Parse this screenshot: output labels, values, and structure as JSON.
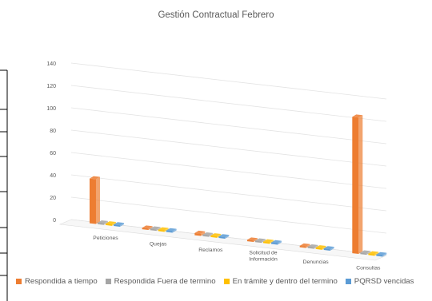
{
  "chart_data": {
    "type": "bar",
    "title": "Gestión Contractual Febrero",
    "categories": [
      "Peticiones",
      "Quejas",
      "Reclamos",
      "Solicitud de Información",
      "Denuncias",
      "Consultas"
    ],
    "category_lines": [
      [
        "Peticiones"
      ],
      [
        "Quejas"
      ],
      [
        "Reclamos"
      ],
      [
        "Solicitud de",
        "Información"
      ],
      [
        "Denuncias"
      ],
      [
        "Consultas"
      ]
    ],
    "series": [
      {
        "name": "Respondida a tiempo",
        "color": "#ED7D31",
        "values": [
          40,
          0,
          2,
          0,
          0,
          122
        ]
      },
      {
        "name": "Respondida Fuera de termino",
        "color": "#A5A5A5",
        "values": [
          0,
          0,
          0,
          0,
          0,
          0
        ]
      },
      {
        "name": "En trámite y dentro del termino",
        "color": "#FFC000",
        "values": [
          0,
          0,
          0,
          0,
          0,
          0
        ]
      },
      {
        "name": "PQRSD vencidas",
        "color": "#5B9BD5",
        "values": [
          0,
          0,
          0,
          0,
          0,
          0
        ]
      }
    ],
    "yticks": [
      0,
      20,
      40,
      60,
      80,
      100,
      120,
      140
    ],
    "ylim": [
      0,
      140
    ],
    "grid": true,
    "legend_position": "bottom"
  }
}
